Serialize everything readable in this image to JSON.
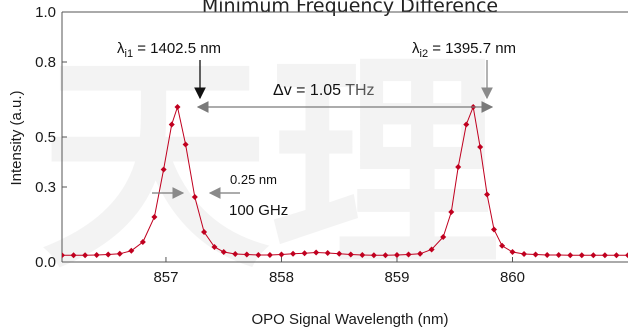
{
  "chart_data": {
    "type": "line",
    "title": "Minimum Frequency Difference",
    "xlabel": "OPO Signal Wavelength (nm)",
    "ylabel": "Intensity (a.u.)",
    "xlim": [
      856.1,
      861.0
    ],
    "ylim": [
      0.0,
      1.0
    ],
    "xticks": [
      857,
      858,
      859,
      860
    ],
    "xtick_labels": [
      "857",
      "858",
      "859",
      "860"
    ],
    "yticks": [
      0.0,
      0.3,
      0.5,
      0.8,
      1.0
    ],
    "ytick_labels": [
      "0.0",
      "0.3",
      "0.5",
      "0.8",
      "1.0"
    ],
    "grid": false,
    "legend": "none",
    "series": [
      {
        "color": "#c0001f",
        "marker": "diamond",
        "x": [
          856.1,
          856.2,
          856.3,
          856.4,
          856.5,
          856.6,
          856.7,
          856.8,
          856.9,
          856.98,
          857.05,
          857.1,
          857.17,
          857.25,
          857.33,
          857.42,
          857.5,
          857.6,
          857.7,
          857.8,
          857.9,
          858.0,
          858.1,
          858.2,
          858.3,
          858.4,
          858.5,
          858.6,
          858.7,
          858.8,
          858.9,
          859.0,
          859.1,
          859.2,
          859.3,
          859.4,
          859.47,
          859.53,
          859.6,
          859.66,
          859.72,
          859.78,
          859.84,
          859.91,
          860.0,
          860.1,
          860.2,
          860.3,
          860.4,
          860.5,
          860.6,
          860.7,
          860.8,
          860.9,
          861.0
        ],
        "y": [
          0.027,
          0.027,
          0.027,
          0.028,
          0.03,
          0.033,
          0.045,
          0.08,
          0.18,
          0.37,
          0.55,
          0.62,
          0.47,
          0.26,
          0.12,
          0.06,
          0.04,
          0.032,
          0.03,
          0.028,
          0.028,
          0.03,
          0.033,
          0.035,
          0.038,
          0.036,
          0.033,
          0.03,
          0.028,
          0.027,
          0.027,
          0.028,
          0.03,
          0.033,
          0.05,
          0.1,
          0.2,
          0.38,
          0.55,
          0.62,
          0.46,
          0.27,
          0.13,
          0.065,
          0.04,
          0.032,
          0.03,
          0.028,
          0.028,
          0.027,
          0.027,
          0.027,
          0.027,
          0.027,
          0.027
        ]
      }
    ],
    "annotations": {
      "peak1_label_main": "λ",
      "peak1_label_sub": "i1",
      "peak1_label_rest": " = 1402.5 nm",
      "peak2_label_main": "λ",
      "peak2_label_sub": "i2",
      "peak2_label_rest": " = 1395.7 nm",
      "delta_label_main": "Δv = 1.05 ",
      "delta_label_unit": "THz",
      "width_nm": "0.25 nm",
      "width_ghz": "100 GHz"
    }
  },
  "colors": {
    "line": "#c0001f",
    "marker_fill": "#c0001f",
    "arrow": "#7a7a7a",
    "axis": "#555555"
  },
  "watermark": {
    "text": "天理"
  }
}
